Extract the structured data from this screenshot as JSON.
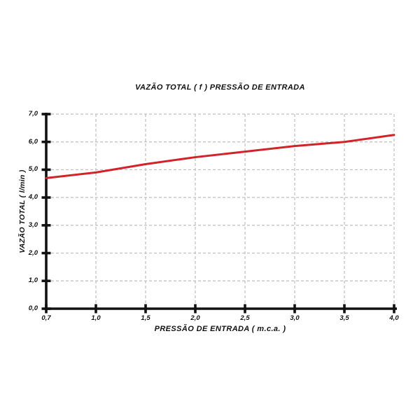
{
  "chart_data": {
    "type": "line",
    "title": "VAZÃO TOTAL ( f ) PRESSÃO DE ENTRADA",
    "xlabel": "PRESSÃO DE ENTRADA ( m.c.a. )",
    "ylabel": "VAZÃO TOTAL ( l/min )",
    "categories": [
      "0,7",
      "1,0",
      "1,5",
      "2,0",
      "2,5",
      "3,0",
      "3,5",
      "4,0"
    ],
    "x_values": [
      0.7,
      1.0,
      1.5,
      2.0,
      2.5,
      3.0,
      3.5,
      4.0
    ],
    "series": [
      {
        "name": "VAZÃO TOTAL",
        "values": [
          4.7,
          4.9,
          5.2,
          5.45,
          5.65,
          5.85,
          6.0,
          6.25
        ]
      }
    ],
    "y_ticks": [
      "0,0",
      "1,0",
      "2,0",
      "3,0",
      "4,0",
      "5,0",
      "6,0",
      "7,0"
    ],
    "y_tick_values": [
      0,
      1,
      2,
      3,
      4,
      5,
      6,
      7
    ],
    "ylim": [
      0,
      7
    ],
    "grid": "dashed, horizontal and vertical, light gray",
    "legend": "none",
    "x_axis_spacing": "category (even spacing between ticks)",
    "colors": {
      "line": "#d2232a",
      "axis": "#111111",
      "grid": "#bfbfbf",
      "background": "#ffffff"
    }
  }
}
